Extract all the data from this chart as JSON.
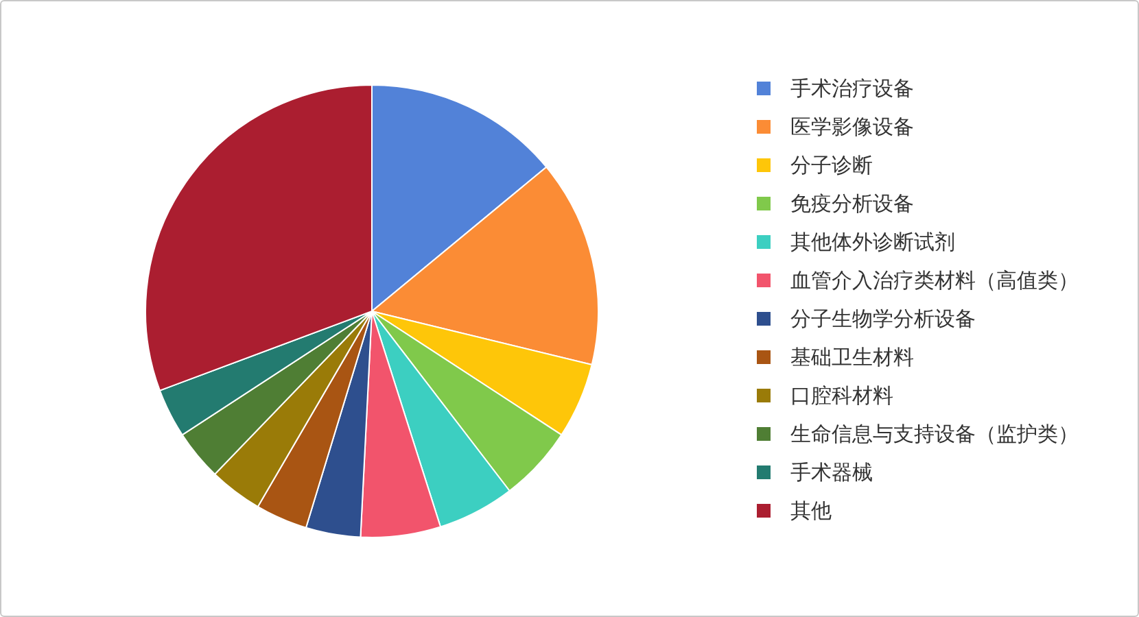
{
  "chart_data": {
    "type": "pie",
    "categories": [
      "手术治疗设备",
      "医学影像设备",
      "分子诊断",
      "免疫分析设备",
      "其他体外诊断试剂",
      "血管介入治疗类材料（高值类）",
      "分子生物学分析设备",
      "基础卫生材料",
      "口腔科材料",
      "生命信息与支持设备（监护类）",
      "手术器械",
      "其他"
    ],
    "values": [
      14.0,
      14.8,
      5.4,
      5.4,
      5.5,
      5.7,
      3.9,
      3.7,
      3.8,
      3.6,
      3.5,
      30.7
    ],
    "colors": [
      "#5282d8",
      "#fb8c35",
      "#fec609",
      "#80c94b",
      "#3ccfc1",
      "#f2546c",
      "#2e4f8e",
      "#a95513",
      "#9a7b08",
      "#4f7e34",
      "#237b70",
      "#ab1e30"
    ],
    "legend": "right"
  }
}
